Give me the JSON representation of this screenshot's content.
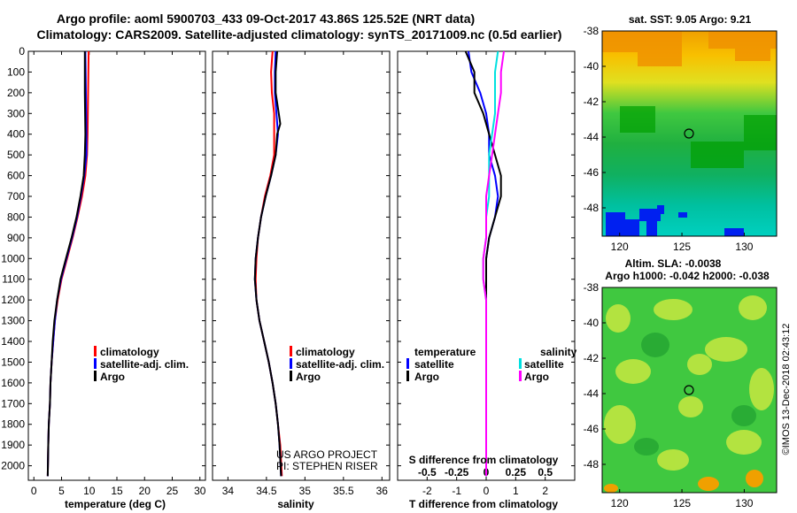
{
  "header": {
    "line1": "Argo profile: aoml 5900703_433 09-Oct-2017 43.86S 125.52E (NRT data)",
    "line2": "Climatology: CARS2009. Satellite-adjusted climatology: synTS_20171009.nc (0.5d earlier)"
  },
  "colors": {
    "climatology": "#ff0000",
    "satellite": "#0000ff",
    "argo": "#000000",
    "salinity_satellite": "#00e0e0",
    "salinity_argo": "#ff00ff"
  },
  "legend": {
    "climatology": "climatology",
    "satellite": "satellite-adj. clim.",
    "argo": "Argo",
    "diff_temperature": "temperature",
    "diff_salinity": "salinity",
    "diff_satellite": "satellite",
    "diff_argo": "Argo"
  },
  "credits": {
    "project": "US ARGO PROJECT",
    "pi": "PI: STEPHEN RISER"
  },
  "maps": {
    "sst_title": "sat. SST: 9.05 Argo: 9.21",
    "sla_title1": "Altim. SLA: -0.0038",
    "sla_title2": "Argo h1000: -0.042 h2000: -0.038",
    "watermark": "©IMOS 13-Dec-2018 02:43:12",
    "lat_ticks": [
      "-38",
      "-40",
      "-42",
      "-44",
      "-46",
      "-48"
    ],
    "lon_ticks": [
      "120",
      "125",
      "130"
    ],
    "profile_marker": {
      "lon": 125.52,
      "lat": -43.86
    }
  },
  "chart_data": [
    {
      "type": "line",
      "xlabel": "temperature (deg C)",
      "ylabel": "",
      "xlim": [
        -1,
        31
      ],
      "ylim": [
        2070,
        0
      ],
      "xticks": [
        "0",
        "5",
        "10",
        "15",
        "20",
        "25",
        "30"
      ],
      "yticks": [
        "0",
        "100",
        "200",
        "300",
        "400",
        "500",
        "600",
        "700",
        "800",
        "900",
        "1000",
        "1100",
        "1200",
        "1300",
        "1400",
        "1500",
        "1600",
        "1700",
        "1800",
        "1900",
        "2000"
      ],
      "series": [
        {
          "name": "climatology",
          "color": "#ff0000",
          "points": [
            [
              9.9,
              0
            ],
            [
              9.8,
              200
            ],
            [
              9.7,
              400
            ],
            [
              9.6,
              500
            ],
            [
              9.3,
              600
            ],
            [
              8.7,
              700
            ],
            [
              7.9,
              800
            ],
            [
              7.0,
              900
            ],
            [
              6.0,
              1000
            ],
            [
              5.0,
              1100
            ],
            [
              4.3,
              1200
            ],
            [
              3.8,
              1300
            ],
            [
              3.5,
              1400
            ],
            [
              3.2,
              1500
            ],
            [
              3.0,
              1600
            ],
            [
              2.9,
              1700
            ],
            [
              2.7,
              1800
            ],
            [
              2.6,
              1900
            ],
            [
              2.5,
              2050
            ]
          ]
        },
        {
          "name": "satellite-adj. clim.",
          "color": "#0000ff",
          "points": [
            [
              9.3,
              0
            ],
            [
              9.4,
              200
            ],
            [
              9.5,
              400
            ],
            [
              9.5,
              500
            ],
            [
              9.1,
              600
            ],
            [
              8.5,
              700
            ],
            [
              7.8,
              800
            ],
            [
              6.9,
              900
            ],
            [
              5.9,
              1000
            ],
            [
              4.9,
              1100
            ],
            [
              4.2,
              1200
            ],
            [
              3.8,
              1300
            ],
            [
              3.5,
              1400
            ],
            [
              3.2,
              1500
            ],
            [
              3.0,
              1600
            ],
            [
              2.9,
              1700
            ],
            [
              2.7,
              1800
            ],
            [
              2.6,
              1900
            ],
            [
              2.5,
              2050
            ]
          ]
        },
        {
          "name": "Argo",
          "color": "#000000",
          "points": [
            [
              9.2,
              0
            ],
            [
              9.2,
              200
            ],
            [
              9.3,
              400
            ],
            [
              9.2,
              500
            ],
            [
              9.0,
              600
            ],
            [
              8.4,
              700
            ],
            [
              7.7,
              800
            ],
            [
              6.8,
              900
            ],
            [
              5.8,
              1000
            ],
            [
              4.8,
              1100
            ],
            [
              4.2,
              1200
            ],
            [
              3.7,
              1300
            ],
            [
              3.4,
              1400
            ],
            [
              3.2,
              1500
            ],
            [
              3.0,
              1600
            ],
            [
              2.9,
              1700
            ],
            [
              2.7,
              1800
            ],
            [
              2.6,
              1900
            ],
            [
              2.5,
              2050
            ]
          ]
        }
      ]
    },
    {
      "type": "line",
      "xlabel": "salinity",
      "ylabel": "",
      "xlim": [
        33.8,
        36.1
      ],
      "ylim": [
        2070,
        0
      ],
      "xticks": [
        "34",
        "34.5",
        "35",
        "35.5",
        "36"
      ],
      "series": [
        {
          "name": "climatology",
          "color": "#ff0000",
          "points": [
            [
              34.58,
              0
            ],
            [
              34.56,
              100
            ],
            [
              34.57,
              200
            ],
            [
              34.6,
              300
            ],
            [
              34.6,
              400
            ],
            [
              34.6,
              500
            ],
            [
              34.55,
              600
            ],
            [
              34.48,
              700
            ],
            [
              34.43,
              800
            ],
            [
              34.39,
              900
            ],
            [
              34.37,
              1000
            ],
            [
              34.36,
              1100
            ],
            [
              34.37,
              1200
            ],
            [
              34.41,
              1300
            ],
            [
              34.47,
              1400
            ],
            [
              34.53,
              1500
            ],
            [
              34.58,
              1600
            ],
            [
              34.62,
              1700
            ],
            [
              34.65,
              1800
            ],
            [
              34.68,
              1900
            ],
            [
              34.7,
              2050
            ]
          ]
        },
        {
          "name": "satellite-adj. clim.",
          "color": "#0000ff",
          "points": [
            [
              34.62,
              0
            ],
            [
              34.61,
              100
            ],
            [
              34.61,
              200
            ],
            [
              34.63,
              300
            ],
            [
              34.65,
              400
            ],
            [
              34.62,
              500
            ],
            [
              34.56,
              600
            ],
            [
              34.49,
              700
            ],
            [
              34.43,
              800
            ],
            [
              34.39,
              900
            ],
            [
              34.36,
              1000
            ],
            [
              34.35,
              1100
            ],
            [
              34.37,
              1200
            ],
            [
              34.41,
              1300
            ],
            [
              34.47,
              1400
            ],
            [
              34.53,
              1500
            ],
            [
              34.58,
              1600
            ],
            [
              34.62,
              1700
            ],
            [
              34.65,
              1800
            ],
            [
              34.67,
              1900
            ],
            [
              34.69,
              2050
            ]
          ]
        },
        {
          "name": "Argo",
          "color": "#000000",
          "points": [
            [
              34.64,
              0
            ],
            [
              34.62,
              100
            ],
            [
              34.62,
              200
            ],
            [
              34.66,
              300
            ],
            [
              34.68,
              350
            ],
            [
              34.64,
              400
            ],
            [
              34.62,
              500
            ],
            [
              34.56,
              600
            ],
            [
              34.49,
              700
            ],
            [
              34.43,
              800
            ],
            [
              34.39,
              900
            ],
            [
              34.36,
              1000
            ],
            [
              34.35,
              1100
            ],
            [
              34.37,
              1200
            ],
            [
              34.41,
              1300
            ],
            [
              34.47,
              1400
            ],
            [
              34.53,
              1500
            ],
            [
              34.58,
              1600
            ],
            [
              34.62,
              1700
            ],
            [
              34.65,
              1800
            ],
            [
              34.67,
              1900
            ],
            [
              34.69,
              2050
            ]
          ]
        }
      ]
    },
    {
      "type": "line",
      "xlabel": "T difference from climatology",
      "xlabel2": "S difference from climatology",
      "ylabel": "",
      "xlim": [
        -3.0,
        3.0
      ],
      "ylim": [
        2070,
        0
      ],
      "xticks": [
        "-2",
        "-1",
        "0",
        "1",
        "2"
      ],
      "xticks2": [
        "-0.5",
        "-0.25",
        "0",
        "0.25",
        "0.5"
      ],
      "series": [
        {
          "name": "temperature satellite",
          "color": "#0000ff",
          "points": [
            [
              -0.6,
              0
            ],
            [
              -0.5,
              100
            ],
            [
              -0.2,
              200
            ],
            [
              0.0,
              300
            ],
            [
              0.1,
              400
            ],
            [
              0.1,
              500
            ],
            [
              0.3,
              600
            ],
            [
              0.4,
              700
            ],
            [
              0.3,
              800
            ],
            [
              0.1,
              900
            ],
            [
              0.0,
              1000
            ],
            [
              0.0,
              1100
            ],
            [
              0.0,
              1200
            ],
            [
              0.0,
              1400
            ],
            [
              0.0,
              1600
            ],
            [
              0.0,
              1800
            ],
            [
              0.0,
              2050
            ]
          ]
        },
        {
          "name": "temperature Argo",
          "color": "#000000",
          "points": [
            [
              -0.7,
              0
            ],
            [
              -0.4,
              100
            ],
            [
              -0.4,
              200
            ],
            [
              -0.1,
              300
            ],
            [
              0.1,
              400
            ],
            [
              0.3,
              500
            ],
            [
              0.5,
              600
            ],
            [
              0.5,
              700
            ],
            [
              0.3,
              800
            ],
            [
              0.1,
              900
            ],
            [
              0.0,
              1000
            ],
            [
              0.0,
              1100
            ],
            [
              0.0,
              1300
            ],
            [
              0.0,
              1500
            ],
            [
              0.0,
              1700
            ],
            [
              0.0,
              2050
            ]
          ]
        },
        {
          "name": "salinity satellite",
          "color": "#00e0e0",
          "points": [
            [
              0.4,
              0
            ],
            [
              0.3,
              100
            ],
            [
              0.3,
              200
            ],
            [
              0.3,
              300
            ],
            [
              0.2,
              400
            ],
            [
              0.1,
              500
            ],
            [
              0.1,
              600
            ],
            [
              0.1,
              700
            ],
            [
              0.0,
              800
            ],
            [
              0.0,
              900
            ],
            [
              -0.1,
              1000
            ],
            [
              -0.1,
              1100
            ],
            [
              0.0,
              1200
            ],
            [
              0.0,
              1500
            ],
            [
              0.0,
              1800
            ],
            [
              0.0,
              2050
            ]
          ]
        },
        {
          "name": "salinity Argo",
          "color": "#ff00ff",
          "points": [
            [
              0.6,
              0
            ],
            [
              0.5,
              100
            ],
            [
              0.5,
              200
            ],
            [
              0.4,
              300
            ],
            [
              0.3,
              400
            ],
            [
              0.2,
              500
            ],
            [
              0.1,
              600
            ],
            [
              0.0,
              700
            ],
            [
              0.0,
              800
            ],
            [
              0.0,
              900
            ],
            [
              -0.1,
              1000
            ],
            [
              -0.1,
              1100
            ],
            [
              0.0,
              1200
            ],
            [
              0.0,
              1500
            ],
            [
              0.0,
              1800
            ],
            [
              0.0,
              2050
            ]
          ]
        }
      ]
    }
  ]
}
